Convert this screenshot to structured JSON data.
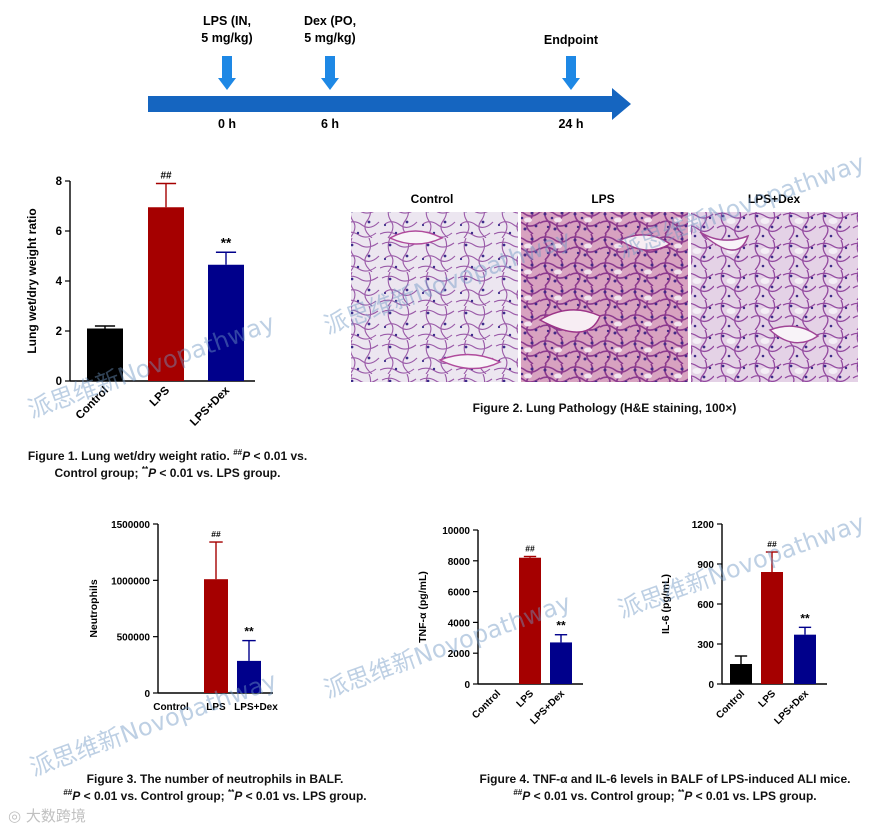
{
  "timeline": {
    "events": [
      {
        "label_lines": [
          "LPS (IN,",
          "5 mg/kg)"
        ],
        "time": "0 h"
      },
      {
        "label_lines": [
          "Dex (PO,",
          "5 mg/kg)"
        ],
        "time": "6 h"
      },
      {
        "label_lines": [
          "Endpoint"
        ],
        "time": "24 h"
      }
    ],
    "colors": {
      "arrow": "#1565c0",
      "marker": "#1e88e5"
    }
  },
  "colors": {
    "Control": "#000000",
    "LPS": "#a50000",
    "LPS+Dex": "#00008b"
  },
  "chart_data": [
    {
      "id": "fig1",
      "type": "bar",
      "ylabel": "Lung wet/dry weight ratio",
      "categories": [
        "Control",
        "LPS",
        "LPS+Dex"
      ],
      "values": [
        2.1,
        6.95,
        4.65
      ],
      "errors": [
        0.1,
        0.95,
        0.5
      ],
      "annotations": [
        "",
        "##",
        "**"
      ],
      "ylim": [
        0,
        8
      ],
      "yticks": [
        "0",
        "2",
        "4",
        "6",
        "8"
      ],
      "xlabel_rotation": -45
    },
    {
      "id": "fig3",
      "type": "bar",
      "ylabel": "Neutrophils",
      "categories": [
        "Control",
        "LPS",
        "LPS+Dex"
      ],
      "values": [
        0,
        1010000,
        285000
      ],
      "errors": [
        0,
        330000,
        180000
      ],
      "annotations": [
        "",
        "##",
        "**"
      ],
      "ylim": [
        0,
        1500000
      ],
      "yticks": [
        "0",
        "500000",
        "1000000",
        "1500000"
      ],
      "xlabel_rotation": 0
    },
    {
      "id": "fig4a",
      "type": "bar",
      "ylabel": "TNF-α (pg/mL)",
      "categories": [
        "Control",
        "LPS",
        "LPS+Dex"
      ],
      "values": [
        0,
        8200,
        2700
      ],
      "errors": [
        0,
        80,
        500
      ],
      "annotations": [
        "",
        "##",
        "**"
      ],
      "ylim": [
        0,
        10000
      ],
      "yticks": [
        "0",
        "2000",
        "4000",
        "6000",
        "8000",
        "10000"
      ],
      "xlabel_rotation": -45
    },
    {
      "id": "fig4b",
      "type": "bar",
      "ylabel": "IL-6 (pg/mL)",
      "categories": [
        "Control",
        "LPS",
        "LPS+Dex"
      ],
      "values": [
        150,
        840,
        370
      ],
      "errors": [
        60,
        150,
        55
      ],
      "annotations": [
        "",
        "##",
        "**"
      ],
      "ylim": [
        0,
        1200
      ],
      "yticks": [
        "0",
        "300",
        "600",
        "900",
        "1200"
      ],
      "xlabel_rotation": -45
    }
  ],
  "pathology": {
    "panels": [
      "Control",
      "LPS",
      "LPS+Dex"
    ]
  },
  "captions": {
    "fig1": {
      "line1": "Figure 1. Lung wet/dry weight ratio. ",
      "sup1": "##",
      "p1": "P",
      "rest1": " < 0.01 vs.",
      "line2a": "Control group; ",
      "sup2": "**",
      "p2": "P",
      "rest2": " < 0.01 vs. LPS group."
    },
    "fig2": {
      "text": "Figure 2. Lung Pathology (H&E staining, 100×)"
    },
    "fig3": {
      "line1": "Figure 3. The number of neutrophils in BALF.",
      "sup1": "##",
      "p1": "P",
      "rest1": " < 0.01 vs. Control group; ",
      "sup2": "**",
      "p2": "P",
      "rest2": " < 0.01 vs. LPS group."
    },
    "fig4": {
      "line1": "Figure 4. TNF-α and IL-6 levels in BALF of LPS-induced ALI mice.",
      "sup1": "##",
      "p1": "P",
      "rest1": " < 0.01 vs. Control group; ",
      "sup2": "**",
      "p2": "P",
      "rest2": " < 0.01 vs. LPS group."
    }
  },
  "watermarks": [
    "派思维新Novopathway",
    "派思维新Novopathway",
    "派思维新Novopathway",
    "派思维新Novopathway",
    "派思维新Novopathway",
    "派思维新Novopathway"
  ],
  "logo_text": "大数跨境"
}
